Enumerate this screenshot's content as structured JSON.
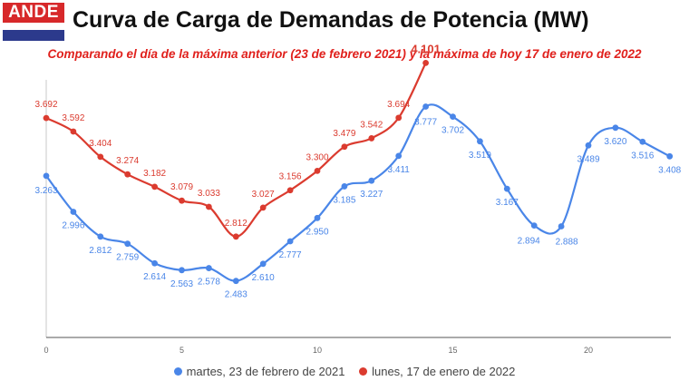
{
  "logo": {
    "text": "ANDE"
  },
  "chart_data": {
    "type": "line",
    "title": "Curva de Carga de Demandas de Potencia (MW)",
    "subtitle": "Comparando el día de la máxima anterior (23 de febrero 2021) y la máxima de hoy 17 de enero de 2022",
    "xlabel": "",
    "ylabel": "",
    "x_ticks": [
      "0",
      "5",
      "10",
      "15",
      "20"
    ],
    "xlim": [
      0,
      23
    ],
    "legend_position": "bottom",
    "grid": false,
    "series": [
      {
        "name": "martes, 23 de febrero de 2021",
        "color": "#4a86e8",
        "x": [
          0,
          1,
          2,
          3,
          4,
          5,
          6,
          7,
          8,
          9,
          10,
          11,
          12,
          13,
          14,
          15,
          16,
          17,
          18,
          19,
          20,
          21,
          22,
          23
        ],
        "values": [
          3.263,
          2.996,
          2.812,
          2.759,
          2.614,
          2.563,
          2.578,
          2.483,
          2.61,
          2.777,
          2.95,
          3.185,
          3.227,
          3.411,
          3.777,
          3.702,
          3.519,
          3.167,
          2.894,
          2.888,
          3.489,
          3.62,
          3.516,
          3.408
        ],
        "labels": [
          "3.263",
          "2.996",
          "2.812",
          "2.759",
          "2.614",
          "2.563",
          "2.578",
          "2.483",
          "2.610",
          "2.777",
          "2.950",
          "3.185",
          "3.227",
          "3.411",
          "3.777",
          "3.702",
          "3.519",
          "3.167",
          "2.894",
          "2.888",
          "3.489",
          "3.620",
          "3.516",
          "3.408"
        ]
      },
      {
        "name": "lunes, 17 de enero de 2022",
        "color": "#db3b2f",
        "x": [
          0,
          1,
          2,
          3,
          4,
          5,
          6,
          7,
          8,
          9,
          10,
          11,
          12,
          13,
          14
        ],
        "values": [
          3.692,
          3.592,
          3.404,
          3.274,
          3.182,
          3.079,
          3.033,
          2.812,
          3.027,
          3.156,
          3.3,
          3.479,
          3.542,
          3.694,
          4.101
        ],
        "labels": [
          "3.692",
          "3.592",
          "3.404",
          "3.274",
          "3.182",
          "3.079",
          "3.033",
          "2.812",
          "3.027",
          "3.156",
          "3.300",
          "3.479",
          "3.542",
          "3.694",
          "4.101"
        ]
      }
    ]
  }
}
